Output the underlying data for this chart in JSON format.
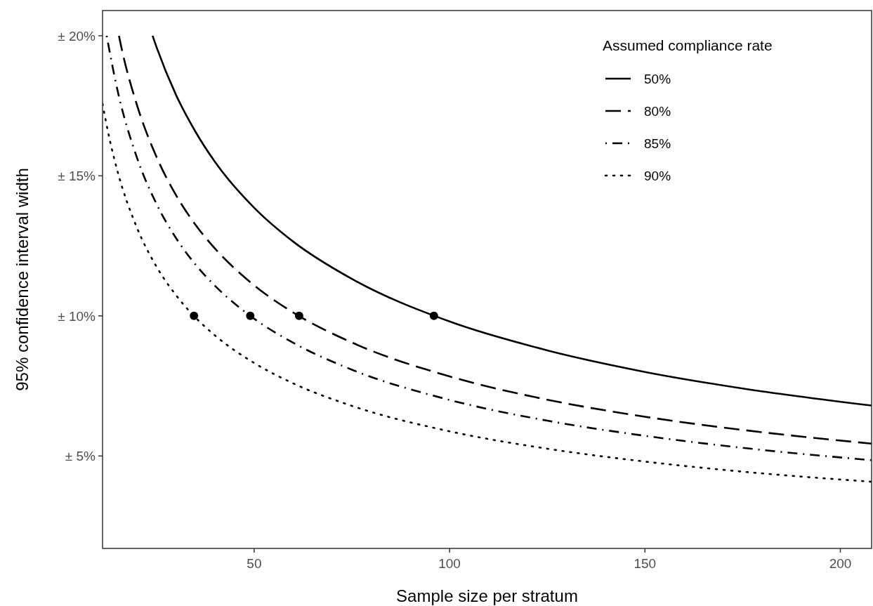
{
  "chart_data": {
    "type": "line",
    "xlabel": "Sample size per stratum",
    "ylabel": "95% confidence interval width",
    "legend_title": "Assumed compliance rate",
    "legend": "top right",
    "grid": false,
    "xlim": [
      11.2,
      208
    ],
    "ylim": [
      1.7,
      20.9
    ],
    "xticks": [
      50,
      100,
      150,
      200
    ],
    "yticks": [
      {
        "value": 5,
        "label": "± 5%"
      },
      {
        "value": 10,
        "label": "± 10%"
      },
      {
        "value": 15,
        "label": "± 15%"
      },
      {
        "value": 20,
        "label": "± 20%"
      }
    ],
    "series": [
      {
        "name": "50%",
        "color": "#000000",
        "line_style": "solid",
        "x": [
          24,
          25,
          30,
          35,
          40,
          50,
          60,
          75,
          100,
          125,
          150,
          175,
          208
        ],
        "values": [
          20.0,
          19.6,
          17.89,
          16.57,
          15.49,
          13.86,
          12.65,
          11.32,
          9.8,
          8.77,
          8.0,
          7.41,
          6.8
        ]
      },
      {
        "name": "80%",
        "color": "#000000",
        "line_style": "dashed",
        "x": [
          15.4,
          16,
          20,
          25,
          30,
          35,
          40,
          50,
          60,
          75,
          100,
          125,
          150,
          175,
          208
        ],
        "values": [
          20.0,
          19.6,
          17.53,
          15.68,
          14.31,
          13.25,
          12.4,
          11.09,
          10.12,
          9.05,
          7.84,
          7.01,
          6.4,
          5.93,
          5.44
        ]
      },
      {
        "name": "85%",
        "color": "#000000",
        "line_style": "dashdot",
        "x": [
          12.25,
          15,
          20,
          25,
          30,
          35,
          40,
          50,
          60,
          75,
          100,
          125,
          150,
          175,
          208
        ],
        "values": [
          20.0,
          18.07,
          15.65,
          14.0,
          12.78,
          11.83,
          11.07,
          9.9,
          9.04,
          8.08,
          7.0,
          6.26,
          5.72,
          5.29,
          4.85
        ]
      },
      {
        "name": "90%",
        "color": "#000000",
        "line_style": "dotted",
        "x": [
          11.2,
          13,
          15,
          20,
          25,
          30,
          35,
          40,
          50,
          60,
          75,
          100,
          125,
          150,
          175,
          208
        ],
        "values": [
          17.57,
          16.31,
          15.18,
          13.15,
          11.76,
          10.74,
          9.94,
          9.3,
          8.32,
          7.59,
          6.79,
          5.88,
          5.26,
          4.8,
          4.44,
          4.08
        ]
      },
      {
        "type": "scatter",
        "marker": "circle",
        "color": "#000000",
        "x": [
          34.6,
          49,
          61.5,
          96
        ],
        "values": [
          10,
          10,
          10,
          10
        ]
      }
    ]
  }
}
